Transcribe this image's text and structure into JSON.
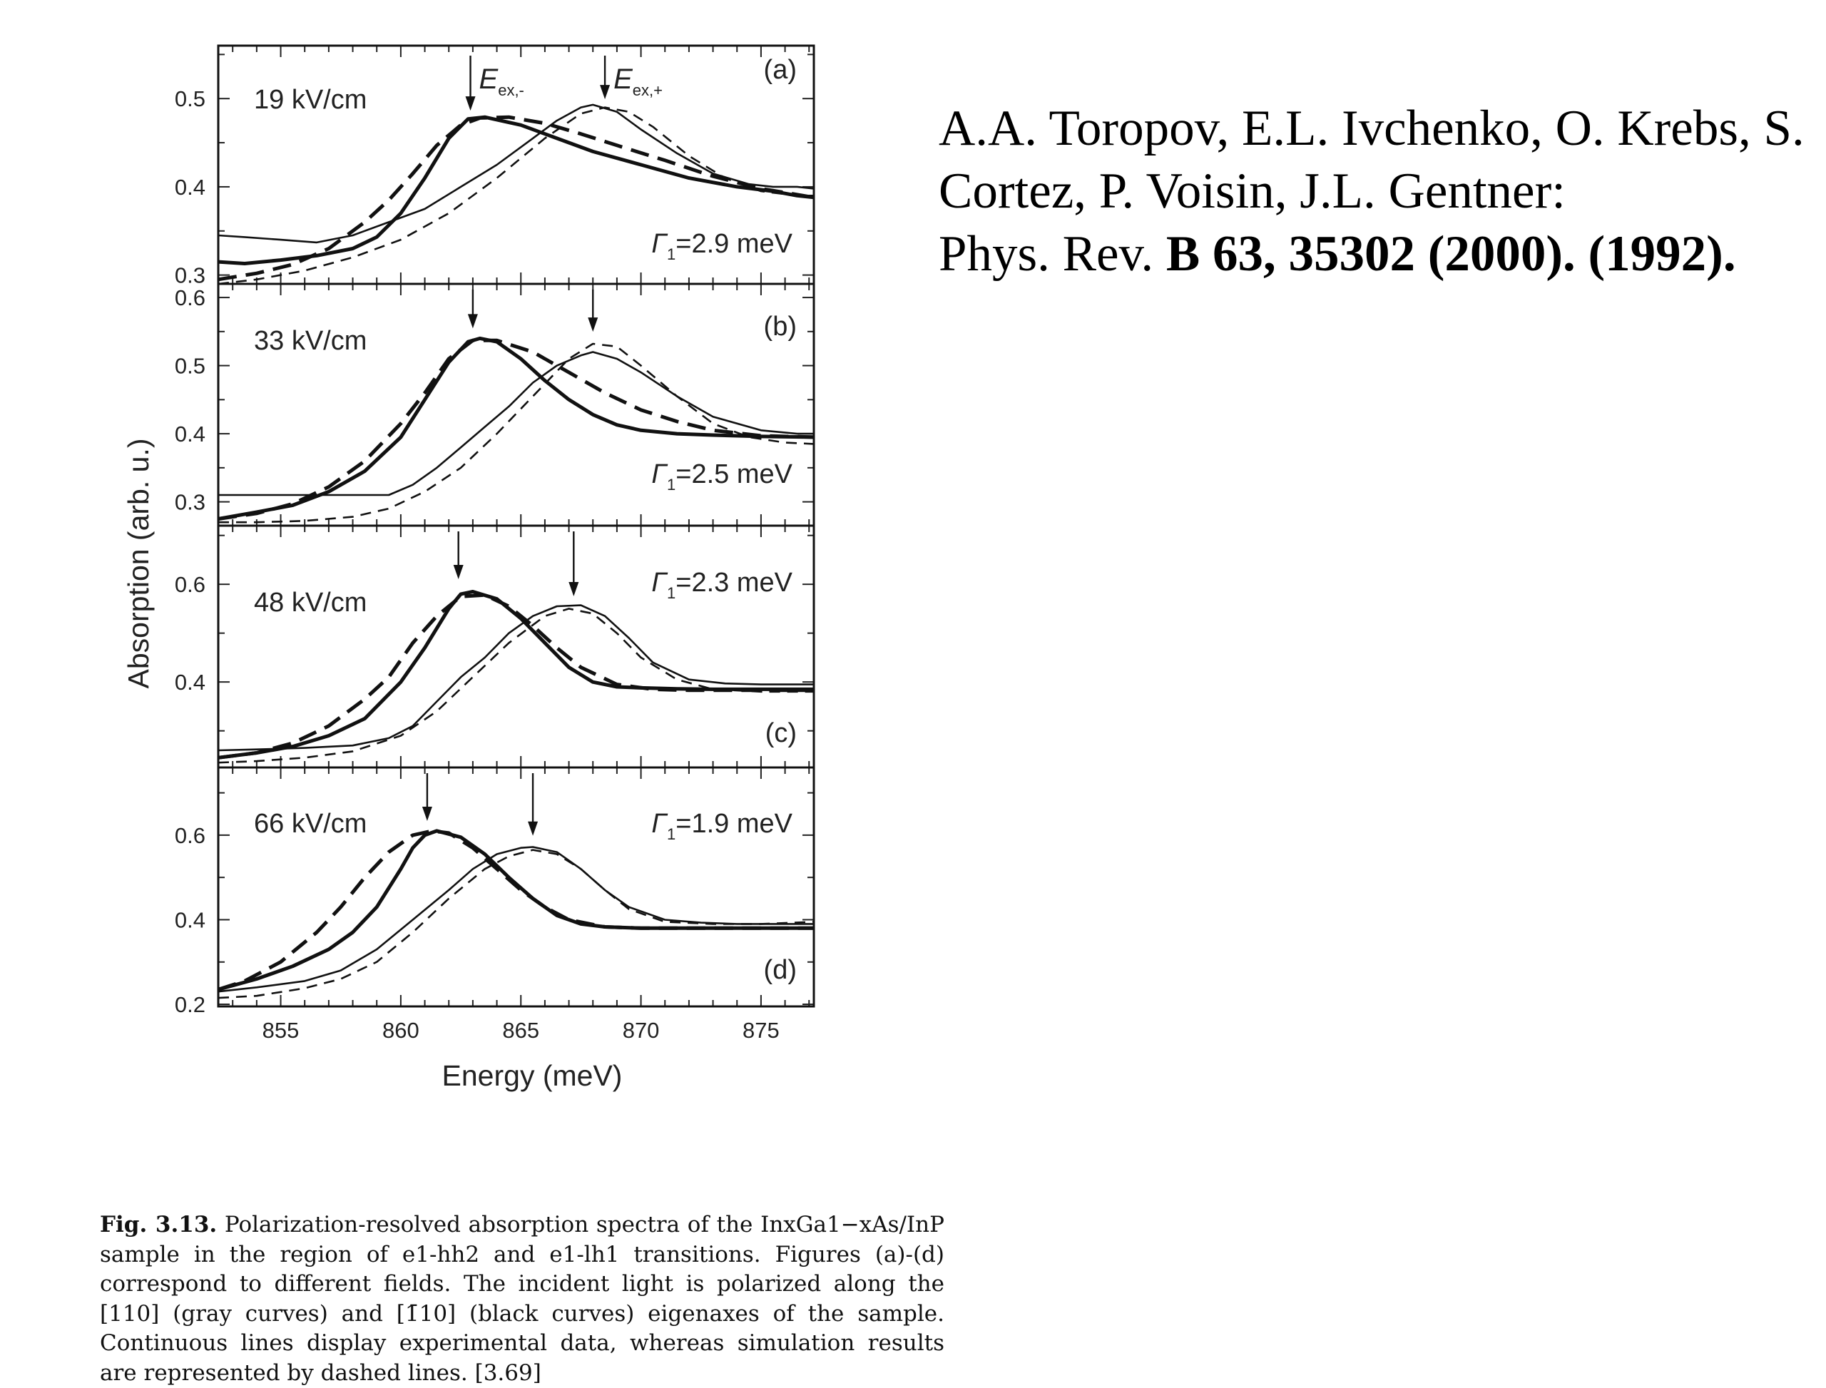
{
  "chart_data": {
    "type": "line",
    "xlabel": "Energy (meV)",
    "ylabel": "Absorption (arb. u.)",
    "xlim": [
      852.4,
      877.2
    ],
    "xticks": [
      855,
      860,
      865,
      870,
      875
    ],
    "grid": false,
    "panels": [
      {
        "label": "(a)",
        "field": "19 kV/cm",
        "gamma": "=2.9 meV",
        "gamma_pos": "bottom-right",
        "ylim": [
          0.29,
          0.56
        ],
        "yticks": [
          0.3,
          0.4,
          0.5
        ],
        "arrows": [
          {
            "x": 862.9,
            "y": 0.475
          },
          {
            "x": 868.5,
            "y": 0.488
          }
        ],
        "peak_labels": [
          {
            "text": "E",
            "sub": "ex,-"
          },
          {
            "text": "E",
            "sub": "ex,+"
          }
        ],
        "series": [
          {
            "style": "thick-solid",
            "x": [
              852.4,
              853.5,
              855,
              856.5,
              858,
              859,
              860,
              861,
              862,
              862.8,
              863.5,
              865,
              866.5,
              868,
              870,
              872,
              874,
              875.5,
              876.5,
              877.2
            ],
            "y": [
              0.315,
              0.313,
              0.317,
              0.322,
              0.33,
              0.343,
              0.37,
              0.41,
              0.455,
              0.477,
              0.479,
              0.47,
              0.455,
              0.44,
              0.425,
              0.41,
              0.4,
              0.395,
              0.39,
              0.388
            ]
          },
          {
            "style": "thick-dashed",
            "x": [
              852.4,
              854,
              855.5,
              857,
              858.5,
              859.5,
              860.5,
              861.5,
              862.5,
              863.3,
              864.5,
              866,
              867.5,
              869,
              871,
              873,
              875,
              877.2
            ],
            "y": [
              0.295,
              0.302,
              0.312,
              0.33,
              0.36,
              0.385,
              0.415,
              0.447,
              0.47,
              0.478,
              0.479,
              0.472,
              0.46,
              0.447,
              0.43,
              0.412,
              0.398,
              0.388
            ]
          },
          {
            "style": "thin-solid",
            "x": [
              852.4,
              853.5,
              855,
              856.5,
              858,
              859.5,
              861,
              862.5,
              864,
              865.5,
              866.5,
              867.5,
              868,
              869,
              870,
              871.5,
              873,
              874.5,
              875.5,
              876.5,
              877.2
            ],
            "y": [
              0.345,
              0.343,
              0.34,
              0.337,
              0.345,
              0.36,
              0.375,
              0.4,
              0.425,
              0.455,
              0.475,
              0.49,
              0.493,
              0.485,
              0.465,
              0.438,
              0.415,
              0.403,
              0.4,
              0.4,
              0.398
            ]
          },
          {
            "style": "thin-dashed",
            "x": [
              852.4,
              854,
              856,
              858,
              860,
              862,
              864,
              866,
              867.5,
              868.5,
              869.5,
              870.5,
              872,
              873.5,
              875,
              876.5,
              877.2
            ],
            "y": [
              0.29,
              0.295,
              0.305,
              0.32,
              0.34,
              0.37,
              0.41,
              0.455,
              0.483,
              0.49,
              0.485,
              0.468,
              0.435,
              0.41,
              0.395,
              0.39,
              0.39
            ]
          }
        ]
      },
      {
        "label": "(b)",
        "field": "33 kV/cm",
        "gamma": "=2.5 meV",
        "gamma_pos": "bottom-right",
        "ylim": [
          0.265,
          0.62
        ],
        "yticks": [
          0.3,
          0.4,
          0.5,
          0.6
        ],
        "arrows": [
          {
            "x": 863.0,
            "y": 0.54
          },
          {
            "x": 868.0,
            "y": 0.535
          }
        ],
        "peak_labels": [],
        "series": [
          {
            "style": "thick-solid",
            "x": [
              852.4,
              854,
              855.5,
              857,
              858.5,
              860,
              861,
              862,
              862.8,
              863.3,
              864,
              865,
              866,
              867,
              868,
              869,
              870,
              871.5,
              873,
              875,
              877.2
            ],
            "y": [
              0.275,
              0.285,
              0.295,
              0.315,
              0.345,
              0.395,
              0.45,
              0.505,
              0.535,
              0.54,
              0.535,
              0.51,
              0.478,
              0.45,
              0.428,
              0.413,
              0.405,
              0.4,
              0.398,
              0.396,
              0.395
            ]
          },
          {
            "style": "thick-dashed",
            "x": [
              852.4,
              854,
              855.5,
              857,
              858.5,
              860,
              861,
              862,
              863,
              864,
              865.5,
              867,
              868.5,
              870,
              871.5,
              873,
              875,
              877.2
            ],
            "y": [
              0.275,
              0.283,
              0.297,
              0.322,
              0.36,
              0.415,
              0.46,
              0.51,
              0.537,
              0.537,
              0.52,
              0.49,
              0.46,
              0.435,
              0.418,
              0.405,
              0.397,
              0.395
            ]
          },
          {
            "style": "thin-solid",
            "x": [
              852.4,
              854,
              856,
              858,
              859.5,
              860.5,
              861.5,
              862.5,
              863.5,
              864.5,
              865.5,
              866.5,
              867.5,
              868,
              869,
              870,
              871.5,
              873,
              875,
              876.5,
              877.2
            ],
            "y": [
              0.31,
              0.31,
              0.31,
              0.31,
              0.31,
              0.325,
              0.35,
              0.38,
              0.41,
              0.44,
              0.475,
              0.5,
              0.515,
              0.52,
              0.51,
              0.49,
              0.455,
              0.425,
              0.405,
              0.4,
              0.4
            ]
          },
          {
            "style": "thin-dashed",
            "x": [
              852.4,
              854,
              856,
              858,
              859.5,
              861,
              862.5,
              864,
              865.5,
              867,
              868,
              869,
              870,
              871.5,
              873,
              874.5,
              876,
              877.2
            ],
            "y": [
              0.27,
              0.27,
              0.272,
              0.278,
              0.29,
              0.315,
              0.35,
              0.4,
              0.455,
              0.51,
              0.532,
              0.528,
              0.5,
              0.455,
              0.415,
              0.395,
              0.387,
              0.385
            ]
          }
        ]
      },
      {
        "label": "(c)",
        "field": "48 kV/cm",
        "gamma": "=2.3 meV",
        "gamma_pos": "top-right",
        "ylim": [
          0.225,
          0.72
        ],
        "yticks": [
          0.4,
          0.6
        ],
        "arrows": [
          {
            "x": 862.4,
            "y": 0.59
          },
          {
            "x": 867.2,
            "y": 0.555
          }
        ],
        "peak_labels": [],
        "series": [
          {
            "style": "thick-solid",
            "x": [
              852.4,
              854,
              855.5,
              857,
              858.5,
              860,
              861,
              862,
              862.5,
              863,
              864,
              865,
              866,
              867,
              868,
              869,
              870,
              871.5,
              873,
              875,
              877.2
            ],
            "y": [
              0.245,
              0.255,
              0.268,
              0.29,
              0.325,
              0.4,
              0.47,
              0.55,
              0.58,
              0.585,
              0.57,
              0.53,
              0.48,
              0.43,
              0.4,
              0.39,
              0.388,
              0.386,
              0.385,
              0.385,
              0.385
            ]
          },
          {
            "style": "thick-dashed",
            "x": [
              852.4,
              854,
              855.5,
              857,
              858.5,
              859.5,
              860.5,
              861.5,
              862.5,
              863.5,
              864.5,
              865.5,
              866.5,
              867.5,
              869,
              870.5,
              872,
              874,
              877.2
            ],
            "y": [
              0.245,
              0.255,
              0.275,
              0.31,
              0.365,
              0.41,
              0.48,
              0.535,
              0.575,
              0.578,
              0.555,
              0.515,
              0.47,
              0.43,
              0.395,
              0.385,
              0.383,
              0.383,
              0.383
            ]
          },
          {
            "style": "thin-solid",
            "x": [
              852.4,
              854,
              856,
              858,
              859.5,
              860.5,
              861.5,
              862.5,
              863.5,
              864.5,
              865.5,
              866.5,
              867.5,
              868.5,
              869.5,
              870.5,
              872,
              873.5,
              875,
              876.5,
              877.2
            ],
            "y": [
              0.26,
              0.262,
              0.265,
              0.27,
              0.285,
              0.31,
              0.36,
              0.41,
              0.45,
              0.5,
              0.535,
              0.555,
              0.557,
              0.535,
              0.49,
              0.44,
              0.405,
              0.397,
              0.395,
              0.395,
              0.395
            ]
          },
          {
            "style": "thin-dashed",
            "x": [
              852.4,
              854,
              856,
              858,
              860,
              861.5,
              863,
              864.5,
              866,
              867,
              868,
              869,
              870,
              871.5,
              873,
              875,
              877.2
            ],
            "y": [
              0.235,
              0.238,
              0.245,
              0.258,
              0.29,
              0.34,
              0.41,
              0.48,
              0.535,
              0.55,
              0.54,
              0.5,
              0.45,
              0.405,
              0.385,
              0.38,
              0.38
            ]
          }
        ]
      },
      {
        "label": "(d)",
        "field": "66 kV/cm",
        "gamma": "=1.9 meV",
        "gamma_pos": "top-right",
        "ylim": [
          0.195,
          0.76
        ],
        "yticks": [
          0.2,
          0.4,
          0.6
        ],
        "arrows": [
          {
            "x": 861.1,
            "y": 0.61
          },
          {
            "x": 865.5,
            "y": 0.575
          }
        ],
        "peak_labels": [],
        "series": [
          {
            "style": "thick-solid",
            "x": [
              852.4,
              854,
              855.5,
              857,
              858,
              859,
              860,
              860.5,
              861,
              861.5,
              862.5,
              863.5,
              864.5,
              865.5,
              866.5,
              867.5,
              868.5,
              870,
              872,
              874,
              877.2
            ],
            "y": [
              0.235,
              0.26,
              0.29,
              0.33,
              0.37,
              0.43,
              0.52,
              0.57,
              0.6,
              0.61,
              0.595,
              0.555,
              0.5,
              0.45,
              0.41,
              0.39,
              0.383,
              0.38,
              0.38,
              0.38,
              0.38
            ]
          },
          {
            "style": "thick-dashed",
            "x": [
              852.4,
              853.5,
              855,
              856.5,
              857.5,
              858.5,
              859.5,
              860.5,
              861.3,
              862,
              863,
              864,
              865,
              866,
              867,
              868.5,
              870,
              872,
              874,
              877.2
            ],
            "y": [
              0.235,
              0.255,
              0.3,
              0.37,
              0.43,
              0.5,
              0.56,
              0.6,
              0.61,
              0.605,
              0.57,
              0.52,
              0.47,
              0.43,
              0.4,
              0.383,
              0.38,
              0.38,
              0.38,
              0.38
            ]
          },
          {
            "style": "thin-solid",
            "x": [
              852.4,
              854,
              856,
              857.5,
              859,
              860.5,
              862,
              863,
              864,
              865,
              865.5,
              866.5,
              867.5,
              868.5,
              869.5,
              871,
              872.5,
              874,
              875.5,
              877.2
            ],
            "y": [
              0.23,
              0.24,
              0.255,
              0.28,
              0.33,
              0.4,
              0.47,
              0.52,
              0.555,
              0.57,
              0.572,
              0.56,
              0.52,
              0.47,
              0.43,
              0.4,
              0.393,
              0.39,
              0.39,
              0.39
            ]
          },
          {
            "style": "thin-dashed",
            "x": [
              852.4,
              854,
              856,
              857.5,
              859,
              860.5,
              862,
              863.5,
              864.5,
              865.5,
              866.5,
              867.5,
              868.5,
              869.5,
              871,
              873,
              875,
              877.2
            ],
            "y": [
              0.215,
              0.22,
              0.238,
              0.26,
              0.3,
              0.37,
              0.45,
              0.52,
              0.55,
              0.565,
              0.555,
              0.52,
              0.47,
              0.425,
              0.395,
              0.39,
              0.39,
              0.395
            ]
          }
        ]
      }
    ]
  },
  "reference": {
    "line1": "A.A. Toropov, E.L. Ivchenko, O. Krebs, S.",
    "line2": "Cortez, P. Voisin, J.L. Gentner:",
    "line3_plain": "Phys. Rev. ",
    "line3_bold": "B 63, 35302 (2000). (1992)."
  },
  "caption": {
    "label": "Fig. 3.13.",
    "text": " Polarization-resolved absorption spectra of the InxGa1−xAs/InP sample in the region of e1-hh2 and e1-lh1 transitions. Figures (a)-(d) correspond to different fields. The incident light is polarized along the [110] (gray curves) and [1̄10] (black curves) eigenaxes of the sample. Continuous lines display experimental data, whereas simulation results are represented by dashed lines. [3.69]"
  }
}
